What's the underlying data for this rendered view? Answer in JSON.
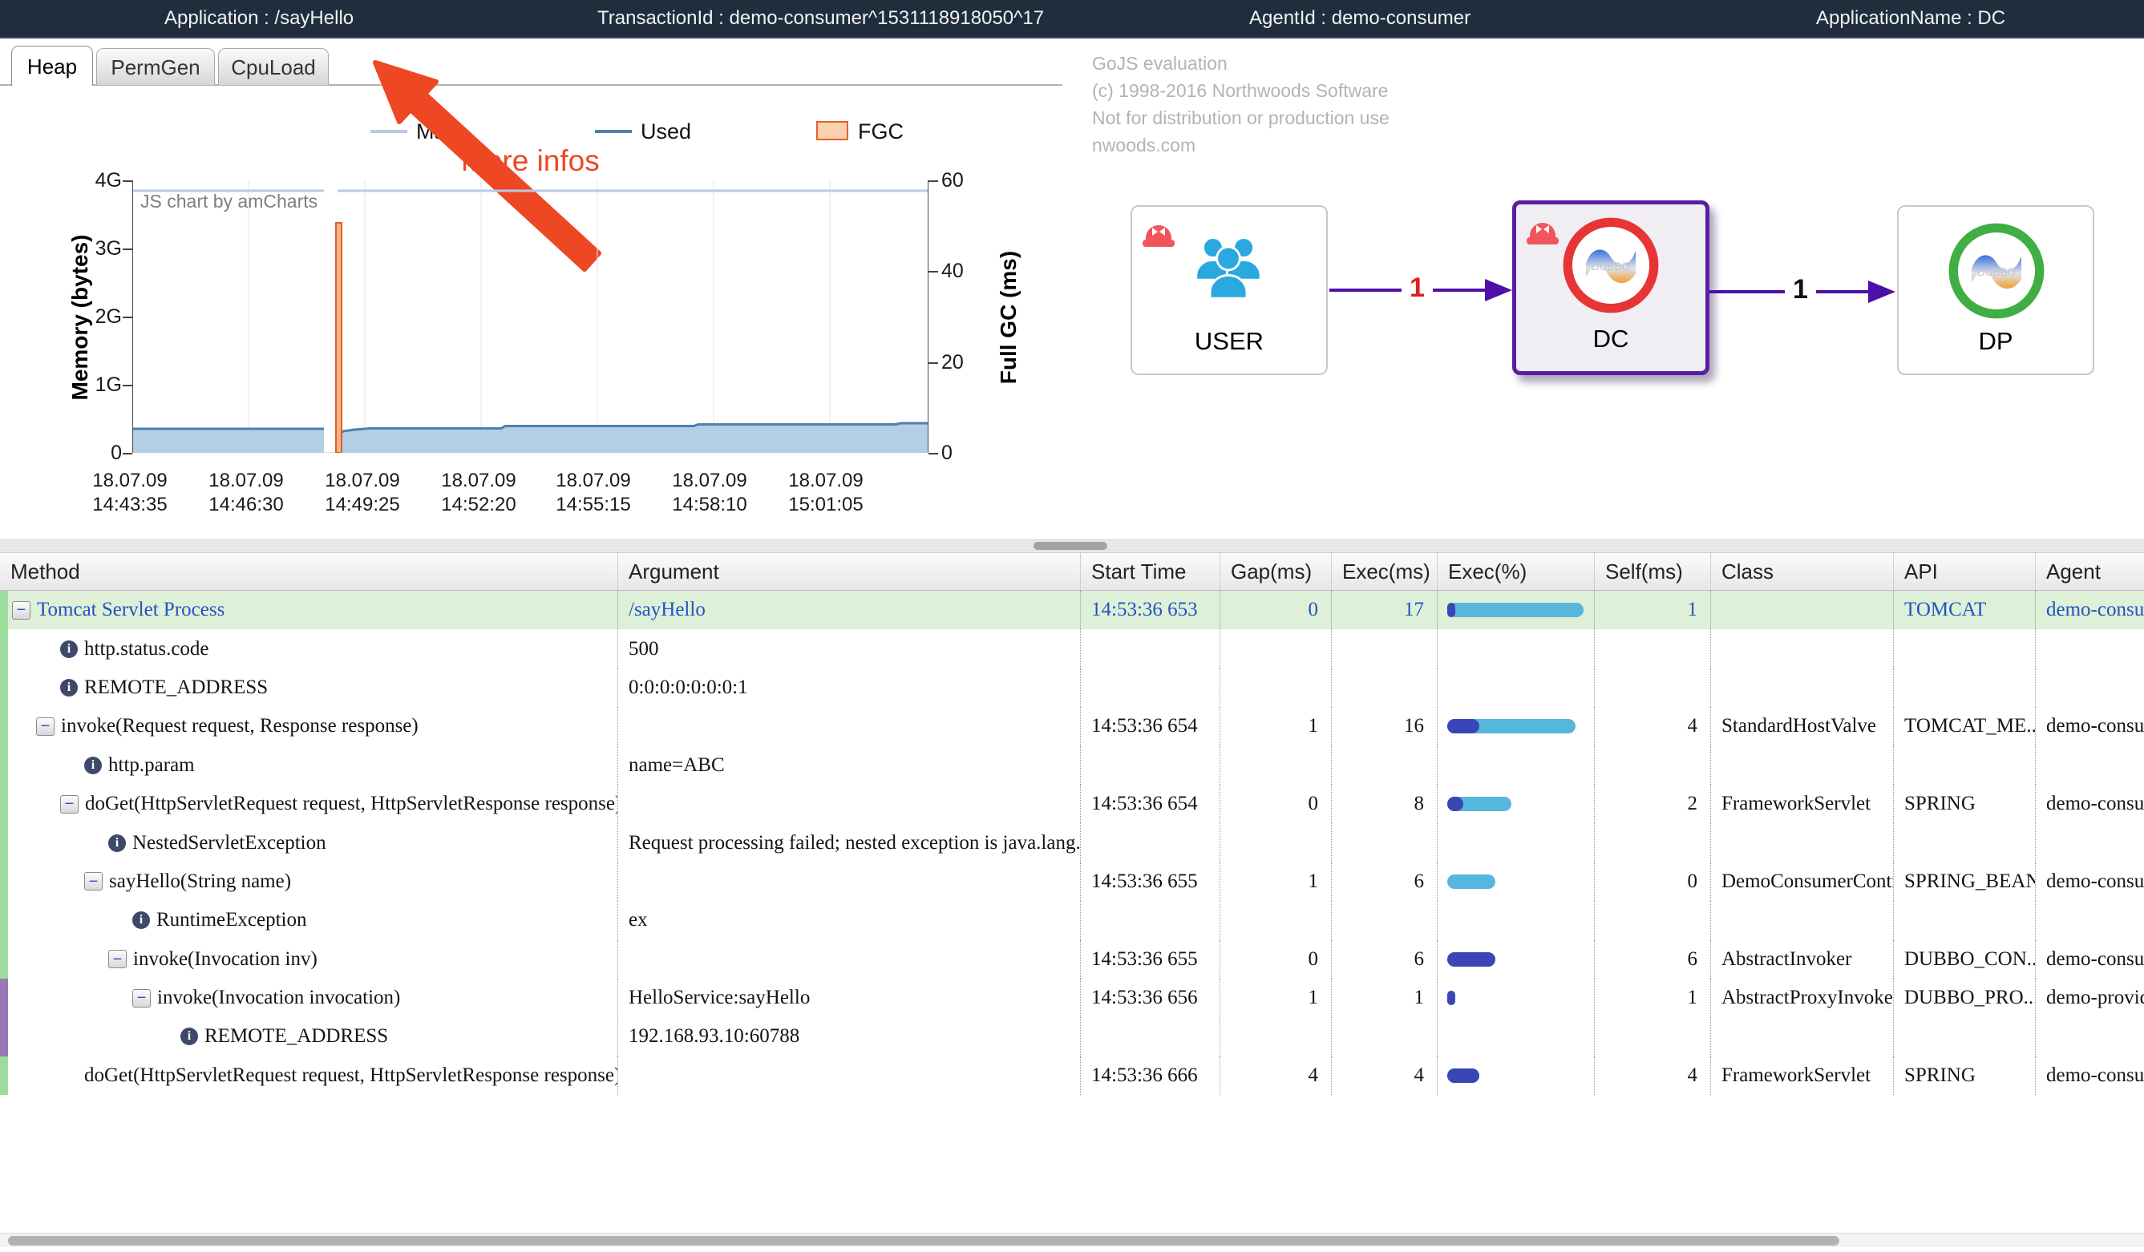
{
  "topbar": {
    "application": "Application : /sayHello",
    "transaction": "TransactionId : demo-consumer^1531118918050^17",
    "agent": "AgentId : demo-consumer",
    "app_name": "ApplicationName : DC"
  },
  "tabs": [
    {
      "label": "Heap",
      "active": true
    },
    {
      "label": "PermGen",
      "active": false
    },
    {
      "label": "CpuLoad",
      "active": false
    }
  ],
  "annotation": {
    "text": "More infos",
    "color": "#ee4723"
  },
  "chart_data": {
    "type": "area",
    "title": "",
    "watermark": "JS chart by amCharts",
    "legend": [
      {
        "name": "Max",
        "swatch": "line",
        "color": "#b9c9ea"
      },
      {
        "name": "Used",
        "swatch": "line",
        "color": "#4e7fad"
      },
      {
        "name": "FGC",
        "swatch": "box",
        "color": "#e2622c",
        "fill": "#fbd0ae"
      }
    ],
    "left_axis": {
      "label": "Memory (bytes)",
      "ticks": [
        "4G",
        "3G",
        "2G",
        "1G",
        "0"
      ],
      "ylim": [
        "0",
        "4G"
      ]
    },
    "right_axis": {
      "label": "Full GC (ms)",
      "ticks": [
        "60",
        "40",
        "20",
        "0"
      ],
      "ylim": [
        0,
        60
      ]
    },
    "x_ticks": [
      {
        "date": "18.07.09",
        "time": "14:43:35"
      },
      {
        "date": "18.07.09",
        "time": "14:46:30"
      },
      {
        "date": "18.07.09",
        "time": "14:49:25"
      },
      {
        "date": "18.07.09",
        "time": "14:52:20"
      },
      {
        "date": "18.07.09",
        "time": "14:55:15"
      },
      {
        "date": "18.07.09",
        "time": "14:58:10"
      },
      {
        "date": "18.07.09",
        "time": "15:01:05"
      }
    ],
    "series": [
      {
        "name": "Max",
        "type": "line",
        "approx_value_gb": 3.85,
        "note": "flat line, data gap just before 14:49:25"
      },
      {
        "name": "Used",
        "type": "area",
        "approx_value_gb_start": 0.35,
        "approx_value_gb_end": 0.44,
        "note": "flat area, data gap just before 14:49:25"
      },
      {
        "name": "FGC",
        "type": "column",
        "points": [
          {
            "x": "18.07.09 14:49:25",
            "ms": 51
          }
        ]
      }
    ]
  },
  "gojs": {
    "lines": [
      "GoJS evaluation",
      "(c) 1998-2016 Northwoods Software",
      "Not for distribution or production use",
      "nwoods.com"
    ]
  },
  "server_map": {
    "nodes": [
      {
        "label": "USER",
        "icon": "users-icon",
        "alarm": true,
        "selected": false
      },
      {
        "label": "DC",
        "icon": "dubbo-red-icon",
        "alarm": true,
        "selected": true
      },
      {
        "label": "DP",
        "icon": "dubbo-green-icon",
        "alarm": false,
        "selected": false
      }
    ],
    "edges": [
      {
        "from": "USER",
        "to": "DC",
        "count": "1",
        "count_color": "#e01f1f"
      },
      {
        "from": "DC",
        "to": "DP",
        "count": "1",
        "count_color": "#111111"
      }
    ]
  },
  "table": {
    "headers": [
      "Method",
      "Argument",
      "Start Time",
      "Gap(ms)",
      "Exec(ms)",
      "Exec(%)",
      "Self(ms)",
      "Class",
      "API",
      "Agent"
    ],
    "rows": [
      {
        "method": "Tomcat Servlet Process",
        "icon": "collapse",
        "depth": 0,
        "argument": "/sayHello",
        "start": "14:53:36 653",
        "gap": "0",
        "exec": 17,
        "self": 1,
        "class": "",
        "api": "TOMCAT",
        "agent": "demo-consume",
        "highlight": true,
        "link": true,
        "strip": "#9cdc9c"
      },
      {
        "method": "http.status.code",
        "icon": "info",
        "depth": 2,
        "argument": "500",
        "start": "",
        "gap": "",
        "exec": null,
        "self": null,
        "class": "",
        "api": "",
        "agent": "",
        "strip": "#9cdc9c"
      },
      {
        "method": "REMOTE_ADDRESS",
        "icon": "info",
        "depth": 2,
        "argument": "0:0:0:0:0:0:0:1",
        "start": "",
        "gap": "",
        "exec": null,
        "self": null,
        "class": "",
        "api": "",
        "agent": "",
        "strip": "#9cdc9c"
      },
      {
        "method": "invoke(Request request, Response response)",
        "icon": "collapse",
        "depth": 1,
        "argument": "",
        "start": "14:53:36 654",
        "gap": "1",
        "exec": 16,
        "self": 4,
        "class": "StandardHostValve",
        "api": "TOMCAT_ME...",
        "agent": "demo-consume",
        "strip": "#9cdc9c"
      },
      {
        "method": "http.param",
        "icon": "info",
        "depth": 3,
        "argument": "name=ABC",
        "start": "",
        "gap": "",
        "exec": null,
        "self": null,
        "class": "",
        "api": "",
        "agent": "",
        "strip": "#9cdc9c"
      },
      {
        "method": "doGet(HttpServletRequest request, HttpServletResponse response)",
        "icon": "collapse",
        "depth": 2,
        "argument": "",
        "start": "14:53:36 654",
        "gap": "0",
        "exec": 8,
        "self": 2,
        "class": "FrameworkServlet",
        "api": "SPRING",
        "agent": "demo-consume",
        "strip": "#9cdc9c"
      },
      {
        "method": "NestedServletException",
        "icon": "info",
        "depth": 4,
        "argument": "Request processing failed; nested exception is java.lang.RuntimeE",
        "start": "",
        "gap": "",
        "exec": null,
        "self": null,
        "class": "",
        "api": "",
        "agent": "",
        "strip": "#9cdc9c"
      },
      {
        "method": "sayHello(String name)",
        "icon": "collapse",
        "depth": 3,
        "argument": "",
        "start": "14:53:36 655",
        "gap": "1",
        "exec": 6,
        "self": 0,
        "class": "DemoConsumerContr...",
        "api": "SPRING_BEAN",
        "agent": "demo-consume",
        "strip": "#9cdc9c"
      },
      {
        "method": "RuntimeException",
        "icon": "info",
        "depth": 5,
        "argument": "ex",
        "start": "",
        "gap": "",
        "exec": null,
        "self": null,
        "class": "",
        "api": "",
        "agent": "",
        "strip": "#9cdc9c"
      },
      {
        "method": "invoke(Invocation inv)",
        "icon": "collapse",
        "depth": 4,
        "argument": "",
        "start": "14:53:36 655",
        "gap": "0",
        "exec": 6,
        "self": 6,
        "class": "AbstractInvoker",
        "api": "DUBBO_CON...",
        "agent": "demo-consume",
        "strip": "#9cdc9c"
      },
      {
        "method": "invoke(Invocation invocation)",
        "icon": "collapse",
        "depth": 5,
        "argument": "HelloService:sayHello",
        "start": "14:53:36 656",
        "gap": "1",
        "exec": 1,
        "self": 1,
        "class": "AbstractProxyInvoker",
        "api": "DUBBO_PRO...",
        "agent": "demo-provider",
        "strip": "#9779b5"
      },
      {
        "method": "REMOTE_ADDRESS",
        "icon": "info",
        "depth": 7,
        "argument": "192.168.93.10:60788",
        "start": "",
        "gap": "",
        "exec": null,
        "self": null,
        "class": "",
        "api": "",
        "agent": "",
        "strip": "#9779b5"
      },
      {
        "method": "doGet(HttpServletRequest request, HttpServletResponse response)",
        "icon": "none",
        "depth": 3,
        "argument": "",
        "start": "14:53:36 666",
        "gap": "4",
        "exec": 4,
        "self": 4,
        "class": "FrameworkServlet",
        "api": "SPRING",
        "agent": "demo-consume",
        "strip": "#9cdc9c"
      }
    ]
  }
}
